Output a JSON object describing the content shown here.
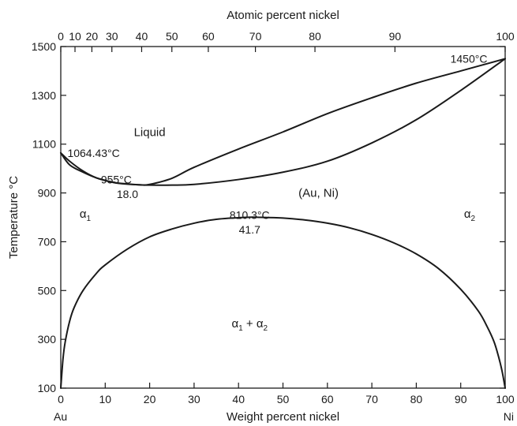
{
  "chart_data": {
    "type": "line",
    "xlabel": "Weight percent nickel",
    "x2label": "Atomic percent nickel",
    "ylabel": "Temperature °C",
    "xlim": [
      0,
      100
    ],
    "ylim": [
      100,
      1500
    ],
    "x_ticks": [
      0,
      10,
      20,
      30,
      40,
      50,
      60,
      70,
      80,
      90,
      100
    ],
    "y_ticks": [
      100,
      300,
      500,
      700,
      900,
      1100,
      1300,
      1500
    ],
    "x2_ticks": [
      {
        "label": "0",
        "x": 0
      },
      {
        "label": "10",
        "x": 3.2
      },
      {
        "label": "20",
        "x": 7.0
      },
      {
        "label": "30",
        "x": 11.5
      },
      {
        "label": "40",
        "x": 18.2
      },
      {
        "label": "50",
        "x": 25.0
      },
      {
        "label": "60",
        "x": 33.2
      },
      {
        "label": "70",
        "x": 43.8
      },
      {
        "label": "80",
        "x": 57.2
      },
      {
        "label": "90",
        "x": 75.2
      },
      {
        "label": "100",
        "x": 100
      }
    ],
    "end_labels": {
      "left": "Au",
      "right": "Ni"
    },
    "series": [
      {
        "x": [
          0,
          2,
          5,
          8,
          12,
          15,
          18,
          20,
          25,
          30,
          40,
          50,
          60,
          70,
          80,
          90,
          100
        ],
        "y": [
          1064,
          1015,
          985,
          962,
          943,
          937,
          933,
          935,
          960,
          1005,
          1080,
          1150,
          1225,
          1290,
          1350,
          1400,
          1450
        ]
      },
      {
        "x": [
          0,
          2,
          5,
          8,
          12,
          15,
          18,
          20,
          25,
          30,
          40,
          50,
          60,
          70,
          80,
          90,
          100
        ],
        "y": [
          1064,
          1030,
          990,
          962,
          942,
          936,
          933,
          932,
          932,
          935,
          955,
          985,
          1030,
          1105,
          1200,
          1320,
          1450
        ]
      },
      {
        "x": [
          0,
          0.5,
          1,
          2,
          3,
          5,
          8,
          10,
          15,
          20,
          25,
          30,
          35,
          41.7,
          45,
          50,
          55,
          60,
          65,
          70,
          75,
          80,
          85,
          90,
          94,
          96,
          97.5,
          98.5,
          99.3,
          100
        ],
        "y": [
          100,
          220,
          290,
          375,
          430,
          500,
          570,
          605,
          670,
          720,
          752,
          776,
          792,
          800,
          800,
          797,
          789,
          776,
          757,
          730,
          695,
          650,
          590,
          505,
          415,
          350,
          290,
          230,
          170,
          100
        ]
      }
    ],
    "annotations": [
      {
        "text": "1450°C",
        "x": 96,
        "y": 1450
      },
      {
        "text": "1064.43°C",
        "x": 1.5,
        "y": 1064
      },
      {
        "text": "955°C",
        "x": 12.5,
        "y": 955
      },
      {
        "text": "18.0",
        "x": 15,
        "y": 895
      },
      {
        "text": "810.3°C",
        "x": 42.5,
        "y": 810
      },
      {
        "text": "41.7",
        "x": 42.5,
        "y": 750
      }
    ],
    "regions": [
      {
        "text": "Liquid",
        "x": 20,
        "y": 1150
      },
      {
        "text": "(Au, Ni)",
        "x": 58,
        "y": 900
      },
      {
        "text": "α1",
        "x": 5.5,
        "y": 815
      },
      {
        "text": "α2",
        "x": 92,
        "y": 815
      },
      {
        "text": "α1 + α2",
        "x": 42.5,
        "y": 365
      }
    ]
  }
}
